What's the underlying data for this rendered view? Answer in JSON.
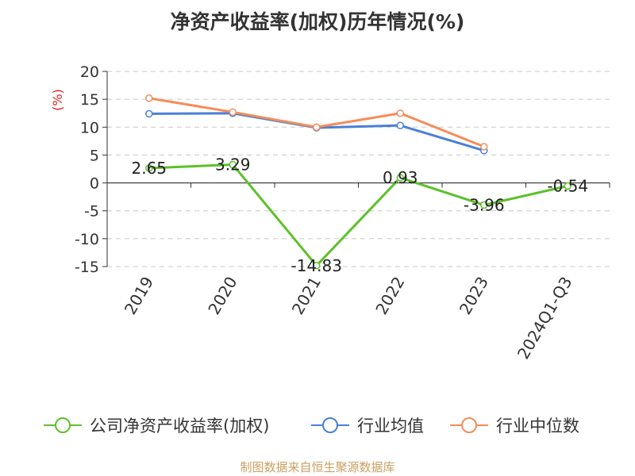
{
  "chart_data": {
    "type": "line",
    "title": "净资产收益率(加权)历年情况(%)",
    "ylabel": "(%)",
    "categories": [
      "2019",
      "2020",
      "2021",
      "2022",
      "2023",
      "2024Q1-Q3"
    ],
    "ylim": [
      -15,
      20
    ],
    "yticks": [
      20,
      15,
      10,
      5,
      0,
      -5,
      -10,
      -15
    ],
    "grid": true,
    "legend_position": "bottom",
    "series": [
      {
        "name": "公司净资产收益率(加权)",
        "color": "#5cc12a",
        "values": [
          2.65,
          3.29,
          -14.83,
          0.93,
          -3.96,
          -0.54
        ],
        "labels": [
          "2.65",
          "3.29",
          "-14.83",
          "0.93",
          "-3.96",
          "-0.54"
        ]
      },
      {
        "name": "行业均值",
        "color": "#4a7fd6",
        "values": [
          12.4,
          12.5,
          9.9,
          10.3,
          5.8,
          null
        ]
      },
      {
        "name": "行业中位数",
        "color": "#f58c5a",
        "values": [
          15.2,
          12.7,
          10.0,
          12.5,
          6.5,
          null
        ]
      }
    ]
  },
  "source": "制图数据来自恒生聚源数据库"
}
